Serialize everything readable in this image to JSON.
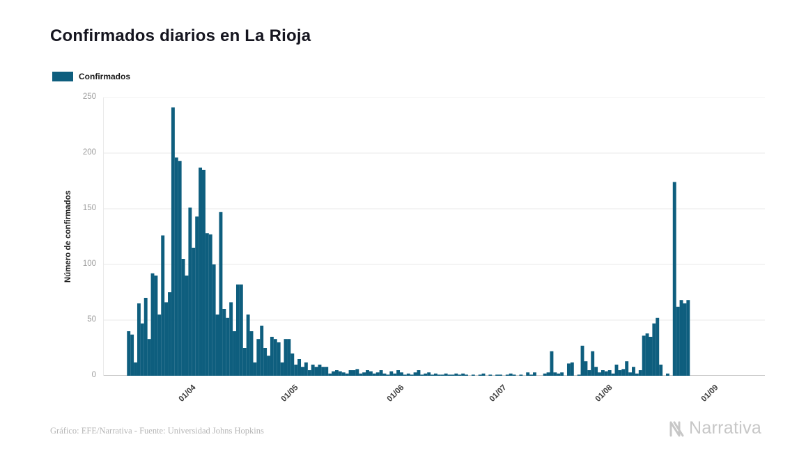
{
  "title": "Confirmados diarios en La Rioja",
  "legend": {
    "label": "Confirmados"
  },
  "footer": {
    "credit": "Gráfico: EFE/Narrativa - Fuente: Universidad Johns Hopkins"
  },
  "brand": {
    "name": "Narrativa"
  },
  "colors": {
    "bar": "#0e5e7e",
    "grid": "#e9e9e9",
    "axis": "#c8c8c8",
    "title": "#15151f",
    "y_tick": "#9b9b9b",
    "x_tick": "#3c3c3c",
    "credit": "#b5b5b5",
    "brand": "#c7c7c7"
  },
  "chart_data": {
    "type": "bar",
    "title": "Confirmados diarios en La Rioja",
    "xlabel": "",
    "ylabel": "Número de confirmados",
    "ylim": [
      0,
      250
    ],
    "yticks": [
      0,
      50,
      100,
      150,
      200,
      250
    ],
    "xticks": [
      "01/04",
      "01/05",
      "01/06",
      "01/07",
      "01/08",
      "01/09"
    ],
    "grid": true,
    "legend_position": "top-left",
    "categories": [
      "13/03",
      "14/03",
      "15/03",
      "16/03",
      "17/03",
      "18/03",
      "19/03",
      "20/03",
      "21/03",
      "22/03",
      "23/03",
      "24/03",
      "25/03",
      "26/03",
      "27/03",
      "28/03",
      "29/03",
      "30/03",
      "31/03",
      "01/04",
      "02/04",
      "03/04",
      "04/04",
      "05/04",
      "06/04",
      "07/04",
      "08/04",
      "09/04",
      "10/04",
      "11/04",
      "12/04",
      "13/04",
      "14/04",
      "15/04",
      "16/04",
      "17/04",
      "18/04",
      "19/04",
      "20/04",
      "21/04",
      "22/04",
      "23/04",
      "24/04",
      "25/04",
      "26/04",
      "27/04",
      "28/04",
      "29/04",
      "30/04",
      "01/05",
      "02/05",
      "03/05",
      "04/05",
      "05/05",
      "06/05",
      "07/05",
      "08/05",
      "09/05",
      "10/05",
      "11/05",
      "12/05",
      "13/05",
      "14/05",
      "15/05",
      "16/05",
      "17/05",
      "18/05",
      "19/05",
      "20/05",
      "21/05",
      "22/05",
      "23/05",
      "24/05",
      "25/05",
      "26/05",
      "27/05",
      "28/05",
      "29/05",
      "30/05",
      "31/05",
      "01/06",
      "02/06",
      "03/06",
      "04/06",
      "05/06",
      "06/06",
      "07/06",
      "08/06",
      "09/06",
      "10/06",
      "11/06",
      "12/06",
      "13/06",
      "14/06",
      "15/06",
      "16/06",
      "17/06",
      "18/06",
      "19/06",
      "20/06",
      "21/06",
      "22/06",
      "23/06",
      "24/06",
      "25/06",
      "26/06",
      "27/06",
      "28/06",
      "29/06",
      "30/06",
      "01/07",
      "02/07",
      "03/07",
      "04/07",
      "05/07",
      "06/07",
      "07/07",
      "08/07",
      "09/07",
      "10/07",
      "11/07",
      "12/07",
      "13/07",
      "14/07",
      "15/07",
      "16/07",
      "17/07",
      "18/07",
      "19/07",
      "20/07",
      "21/07",
      "22/07",
      "23/07",
      "24/07",
      "25/07",
      "26/07",
      "27/07",
      "28/07",
      "29/07",
      "30/07",
      "31/07",
      "01/08",
      "02/08",
      "03/08",
      "04/08",
      "05/08",
      "06/08",
      "07/08",
      "08/08",
      "09/08",
      "10/08",
      "11/08",
      "12/08",
      "13/08",
      "14/08",
      "15/08",
      "16/08",
      "17/08",
      "18/08",
      "19/08",
      "20/08",
      "21/08",
      "22/08",
      "23/08",
      "24/08"
    ],
    "series": [
      {
        "name": "Confirmados",
        "values": [
          40,
          37,
          12,
          65,
          47,
          70,
          33,
          92,
          90,
          55,
          126,
          66,
          75,
          241,
          196,
          193,
          105,
          90,
          151,
          115,
          143,
          187,
          185,
          128,
          127,
          100,
          55,
          147,
          60,
          52,
          66,
          40,
          82,
          82,
          25,
          55,
          40,
          12,
          33,
          45,
          25,
          18,
          35,
          33,
          30,
          12,
          33,
          33,
          20,
          10,
          15,
          8,
          12,
          5,
          10,
          8,
          10,
          8,
          8,
          2,
          4,
          5,
          4,
          3,
          2,
          5,
          5,
          6,
          2,
          3,
          5,
          4,
          2,
          3,
          5,
          2,
          1,
          4,
          2,
          5,
          3,
          1,
          2,
          1,
          3,
          5,
          1,
          2,
          3,
          1,
          2,
          1,
          1,
          2,
          1,
          1,
          2,
          1,
          2,
          1,
          0,
          1,
          0,
          1,
          2,
          0,
          1,
          0,
          1,
          1,
          0,
          1,
          2,
          1,
          0,
          1,
          0,
          3,
          1,
          3,
          0,
          0,
          2,
          3,
          22,
          3,
          2,
          3,
          0,
          11,
          12,
          0,
          1,
          27,
          13,
          5,
          22,
          8,
          3,
          5,
          4,
          5,
          2,
          10,
          5,
          6,
          13,
          3,
          8,
          2,
          5,
          36,
          38,
          35,
          47,
          52,
          10,
          0,
          2,
          0,
          174,
          62,
          68,
          65,
          68
        ]
      }
    ]
  }
}
